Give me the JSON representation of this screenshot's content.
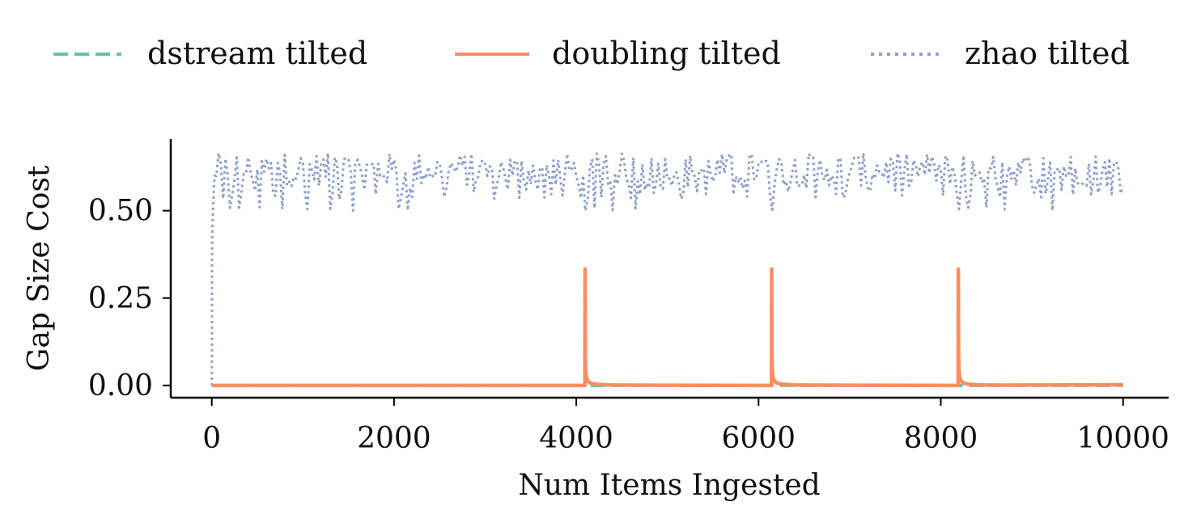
{
  "chart_data": {
    "type": "line",
    "xlabel": "Num Items Ingested",
    "ylabel": "Gap Size Cost",
    "xlim": [
      -450,
      10500
    ],
    "ylim": [
      -0.035,
      0.705
    ],
    "xticks": [
      0,
      2000,
      4000,
      6000,
      8000,
      10000
    ],
    "xtick_labels": [
      "0",
      "2000",
      "4000",
      "6000",
      "8000",
      "10000"
    ],
    "yticks": [
      0.0,
      0.25,
      0.5
    ],
    "ytick_labels": [
      "0.00",
      "0.25",
      "0.50"
    ],
    "grid": false,
    "legend_position": "top",
    "series": [
      {
        "name": "dstream tilted",
        "color": "#66c2a5",
        "style": "dashed",
        "description": "approximately zero across all items",
        "points": [
          [
            0,
            0.0
          ],
          [
            10000,
            0.0
          ]
        ]
      },
      {
        "name": "doubling tilted",
        "color": "#fc8d62",
        "style": "solid",
        "baseline": 0.0,
        "spikes": [
          {
            "x": 4096,
            "peak": 0.333
          },
          {
            "x": 6144,
            "peak": 0.333
          },
          {
            "x": 8192,
            "peak": 0.333
          }
        ],
        "x_end": 10000
      },
      {
        "name": "zhao tilted",
        "color": "#8da0cb",
        "style": "dotted",
        "start": {
          "x": 0,
          "y": 0.0
        },
        "band_low": 0.57,
        "band_high": 0.665,
        "dip_min": 0.5,
        "dips_x": [
          200,
          300,
          520,
          780,
          1040,
          1300,
          1560,
          2050,
          2150,
          4100,
          4200,
          4400,
          4650,
          6140,
          8190,
          8300,
          8500,
          8700,
          9220
        ],
        "x_end": 10000
      }
    ]
  }
}
